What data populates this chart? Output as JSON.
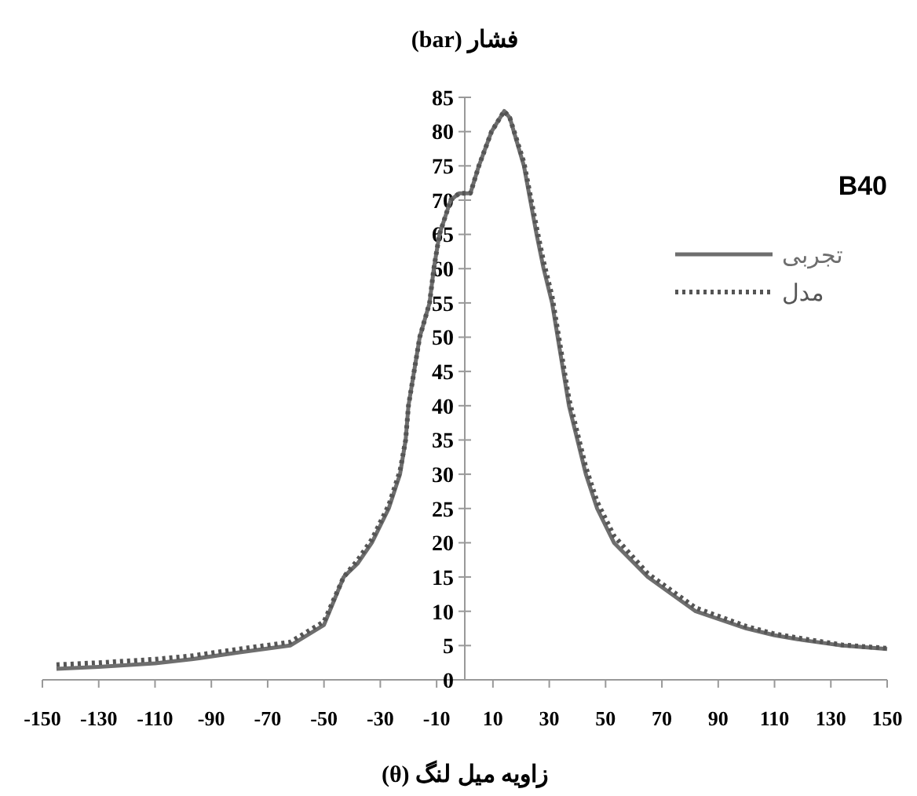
{
  "chart_data": {
    "type": "line",
    "xlabel": "زاویه میل لنگ (θ)",
    "ylabel": "فشار (bar)",
    "legend_title": "B40",
    "xlim": [
      -150,
      150
    ],
    "xticks": [
      -150,
      -130,
      -110,
      -90,
      -70,
      -50,
      -30,
      -10,
      10,
      30,
      50,
      70,
      90,
      110,
      130,
      150
    ],
    "ylim": [
      0,
      85
    ],
    "yticks": [
      0,
      5,
      10,
      15,
      20,
      25,
      30,
      35,
      40,
      45,
      50,
      55,
      60,
      65,
      70,
      75,
      80,
      85
    ],
    "grid": false,
    "legend": "right",
    "marker": "none",
    "series": [
      {
        "name": "تجربی",
        "color": "#6e6e6e",
        "line_style": "solid",
        "x": [
          -145,
          -130,
          -110,
          -97,
          -80,
          -62,
          -50,
          -43,
          -38,
          -33,
          -27,
          -23,
          -21,
          -20,
          -18,
          -16,
          -12.5,
          -11,
          -9,
          -5,
          -2,
          2,
          5,
          9.5,
          14,
          16,
          21,
          25.5,
          28,
          31,
          33,
          35,
          37,
          40,
          43,
          47,
          53,
          65,
          82,
          100,
          110,
          120,
          134,
          150
        ],
        "values": [
          1.6,
          1.9,
          2.4,
          3,
          4,
          5,
          8,
          15,
          17,
          20,
          25,
          30,
          35,
          40,
          45,
          50,
          55,
          60,
          65,
          70,
          71,
          71,
          75,
          80,
          83,
          82,
          75,
          65,
          60,
          55,
          50,
          45,
          40,
          35,
          30,
          25,
          20,
          15,
          10,
          7.5,
          6.5,
          5.8,
          5,
          4.5
        ]
      },
      {
        "name": "مدل",
        "color": "#555555",
        "line_style": "dotted",
        "x": [
          -145,
          -130,
          -110,
          -97,
          -80,
          -62,
          -50,
          -43,
          -38,
          -33,
          -27,
          -23,
          -21,
          -20,
          -18,
          -16,
          -12.5,
          -11,
          -9,
          -5,
          -2,
          2,
          5,
          9.5,
          14,
          16,
          21,
          25.5,
          28,
          31,
          33,
          35,
          37,
          40,
          43,
          47,
          53,
          65,
          82,
          100,
          110,
          120,
          134,
          150
        ],
        "values": [
          2.2,
          2.5,
          3,
          3.5,
          4.5,
          5.5,
          8.5,
          15,
          17.5,
          20.5,
          25.5,
          30.5,
          35,
          40,
          45,
          50,
          55,
          60,
          65,
          70,
          71,
          71,
          75,
          80,
          83,
          82,
          75.5,
          66,
          61,
          56,
          51,
          46,
          41,
          36,
          31,
          26,
          21,
          15.5,
          10.5,
          7.8,
          6.7,
          6,
          5.1,
          4.6
        ]
      }
    ]
  }
}
